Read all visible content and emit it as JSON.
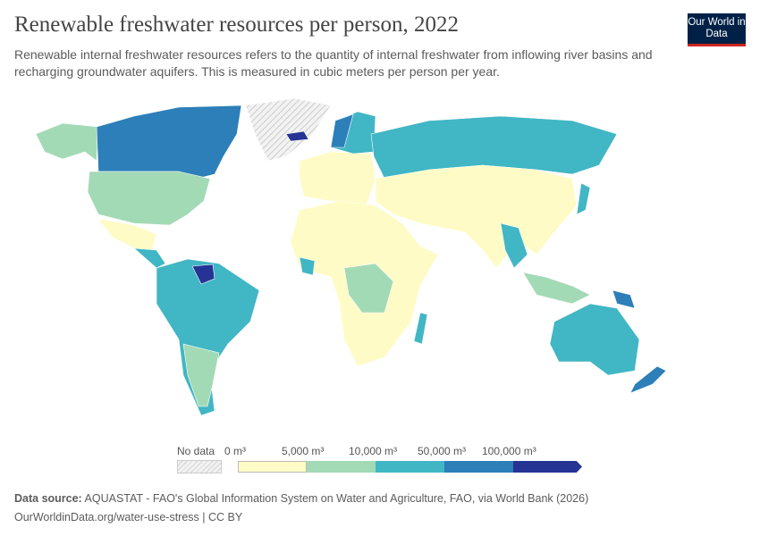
{
  "header": {
    "title": "Renewable freshwater resources per person, 2022",
    "subtitle": "Renewable internal freshwater resources refers to the quantity of internal freshwater from inflowing river basins and recharging groundwater aquifers. This is measured in cubic meters per person per year.",
    "logo": "Our World in Data"
  },
  "legend": {
    "no_data": "No data",
    "bins": [
      "0 m³",
      "5,000 m³",
      "10,000 m³",
      "50,000 m³",
      "100,000 m³"
    ],
    "colors": [
      "#fffbc6",
      "#a3dab6",
      "#41b6c4",
      "#2c7fb8",
      "#253494"
    ],
    "no_data_pattern": "hatched grey"
  },
  "footer": {
    "source_label": "Data source:",
    "source": "AQUASTAT - FAO's Global Information System on Water and Agriculture, FAO, via World Bank (2026)",
    "link": "OurWorldinData.org/water-use-stress | CC BY"
  }
}
